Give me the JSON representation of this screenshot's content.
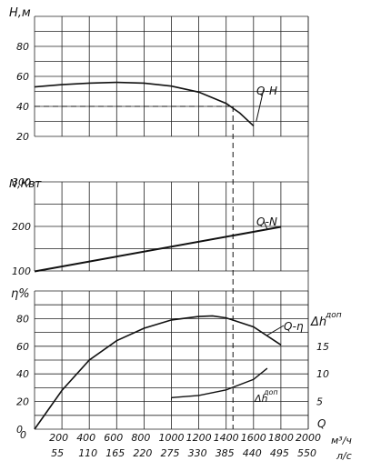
{
  "chart_data": [
    {
      "type": "line",
      "panel": "head",
      "ylabel": "H,м",
      "yticks": [
        "20",
        "40",
        "60",
        "80"
      ],
      "ylim": [
        20,
        100
      ],
      "curve_label": "Q-H",
      "series": [
        {
          "name": "Q-H",
          "x": [
            0,
            200,
            400,
            600,
            800,
            1000,
            1200,
            1400,
            1500,
            1600
          ],
          "y": [
            53,
            54.5,
            55.5,
            56,
            55.5,
            53.5,
            49.5,
            42,
            35.5,
            27
          ]
        }
      ],
      "reference": {
        "x": 1450,
        "y": 40,
        "style": "dashed"
      }
    },
    {
      "type": "line",
      "panel": "power",
      "ylabel": "N,Квт",
      "yticks": [
        "100",
        "200",
        "300"
      ],
      "ylim": [
        100,
        300
      ],
      "curve_label": "Q-N",
      "series": [
        {
          "name": "Q-N",
          "x": [
            0,
            1800
          ],
          "y": [
            99,
            199
          ]
        }
      ]
    },
    {
      "type": "line",
      "panel": "efficiency",
      "ylabel": "η%",
      "yticks": [
        "0",
        "20",
        "40",
        "60",
        "80"
      ],
      "ylim": [
        0,
        100
      ],
      "curve_label": "Q-η",
      "series": [
        {
          "name": "Q-η",
          "x": [
            0,
            200,
            400,
            600,
            800,
            1000,
            1200,
            1300,
            1400,
            1600,
            1800
          ],
          "y": [
            0,
            28,
            50,
            64,
            73,
            79,
            81.5,
            82,
            80.5,
            74,
            61
          ]
        },
        {
          "name": "Δh доп",
          "axis": "right",
          "x": [
            1000,
            1200,
            1400,
            1600,
            1700
          ],
          "y": [
            5.7,
            6.1,
            7.1,
            9.0,
            11.0
          ]
        }
      ],
      "right_axis": {
        "label_main": "Δh",
        "label_sup": "доп",
        "ticks": [
          "5",
          "10",
          "15"
        ],
        "curve_label_main": "Δh",
        "curve_label_sup": "доп"
      }
    }
  ],
  "x_axis": {
    "label": "Q",
    "ticks_m3h": [
      "200",
      "400",
      "600",
      "800",
      "1000",
      "1200",
      "1400",
      "1600",
      "1800",
      "2000"
    ],
    "ticks_ls": [
      "55",
      "110",
      "165",
      "220",
      "275",
      "330",
      "385",
      "440",
      "495",
      "550"
    ],
    "unit_top": "м³/ч",
    "unit_bottom": "л/с",
    "origin": "0"
  },
  "style": {
    "line_color": "#111111",
    "grid_color": "#222222"
  }
}
